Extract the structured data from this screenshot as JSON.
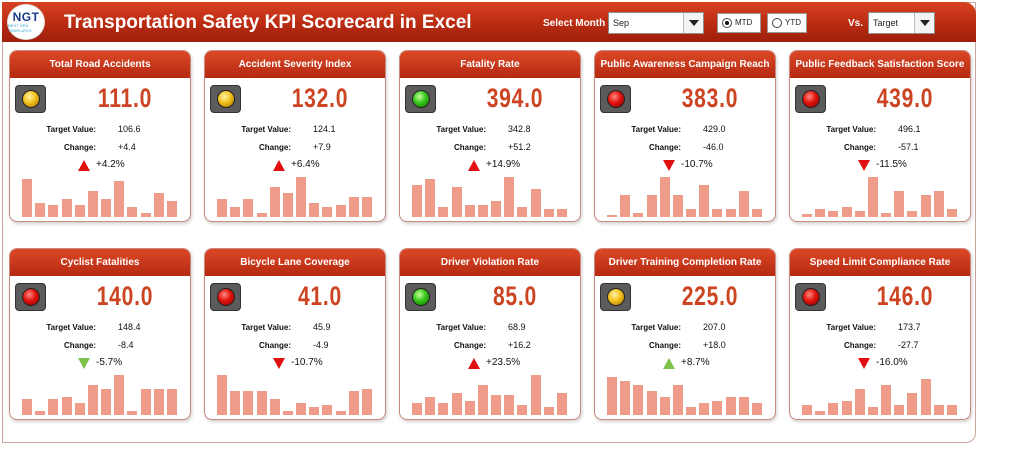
{
  "header": {
    "title": "Transportation Safety KPI Scorecard in Excel",
    "logo_text": "NGT",
    "logo_subtext": "NEXT GEN TEMPLATES",
    "select_month_label": "Select Month",
    "month_value": "Sep",
    "mtd_label": "MTD",
    "ytd_label": "YTD",
    "vs_label": "Vs.",
    "vs_value": "Target"
  },
  "labels": {
    "target": "Target Value:",
    "change": "Change:"
  },
  "cards": [
    {
      "title": "Total Road Accidents",
      "actual": "111.0",
      "target": "106.6",
      "change": "+4.4",
      "pct": "+4.2%",
      "light": "yellow",
      "arrow": "up-red",
      "spark": [
        0.95,
        0.35,
        0.3,
        0.45,
        0.3,
        0.65,
        0.45,
        0.9,
        0.25,
        0.1,
        0.6,
        0.4
      ]
    },
    {
      "title": "Accident Severity Index",
      "actual": "132.0",
      "target": "124.1",
      "change": "+7.9",
      "pct": "+6.4%",
      "light": "yellow",
      "arrow": "up-red",
      "spark": [
        0.45,
        0.25,
        0.45,
        0.1,
        0.75,
        0.6,
        1.0,
        0.35,
        0.25,
        0.3,
        0.5,
        0.5
      ]
    },
    {
      "title": "Fatality Rate",
      "actual": "394.0",
      "target": "342.8",
      "change": "+51.2",
      "pct": "+14.9%",
      "light": "green",
      "arrow": "up-red",
      "spark": [
        0.8,
        0.95,
        0.25,
        0.75,
        0.3,
        0.3,
        0.4,
        1.0,
        0.25,
        0.7,
        0.2,
        0.2
      ]
    },
    {
      "title": "Public Awareness Campaign Reach",
      "actual": "383.0",
      "target": "429.0",
      "change": "-46.0",
      "pct": "-10.7%",
      "light": "red",
      "arrow": "down-red",
      "spark": [
        0.05,
        0.55,
        0.1,
        0.55,
        1.0,
        0.55,
        0.2,
        0.8,
        0.2,
        0.2,
        0.65,
        0.2
      ]
    },
    {
      "title": "Public Feedback Satisfaction Score",
      "actual": "439.0",
      "target": "496.1",
      "change": "-57.1",
      "pct": "-11.5%",
      "light": "red",
      "arrow": "down-red",
      "spark": [
        0.08,
        0.2,
        0.15,
        0.25,
        0.15,
        1.0,
        0.1,
        0.65,
        0.15,
        0.55,
        0.65,
        0.2
      ]
    },
    {
      "title": "Cyclist Fatalities",
      "actual": "140.0",
      "target": "148.4",
      "change": "-8.4",
      "pct": "-5.7%",
      "light": "red",
      "arrow": "down-green",
      "spark": [
        0.4,
        0.1,
        0.4,
        0.45,
        0.3,
        0.75,
        0.65,
        1.0,
        0.1,
        0.65,
        0.65,
        0.65
      ]
    },
    {
      "title": "Bicycle Lane Coverage",
      "actual": "41.0",
      "target": "45.9",
      "change": "-4.9",
      "pct": "-10.7%",
      "light": "red",
      "arrow": "down-red",
      "spark": [
        1.0,
        0.6,
        0.6,
        0.6,
        0.4,
        0.1,
        0.3,
        0.2,
        0.25,
        0.1,
        0.6,
        0.65
      ]
    },
    {
      "title": "Driver Violation Rate",
      "actual": "85.0",
      "target": "68.9",
      "change": "+16.2",
      "pct": "+23.5%",
      "light": "green",
      "arrow": "up-red",
      "spark": [
        0.3,
        0.45,
        0.3,
        0.55,
        0.35,
        0.75,
        0.5,
        0.5,
        0.25,
        1.0,
        0.2,
        0.55
      ]
    },
    {
      "title": "Driver Training Completion Rate",
      "actual": "225.0",
      "target": "207.0",
      "change": "+18.0",
      "pct": "+8.7%",
      "light": "yellow",
      "arrow": "up-green",
      "spark": [
        0.95,
        0.85,
        0.75,
        0.6,
        0.45,
        0.75,
        0.2,
        0.3,
        0.35,
        0.45,
        0.45,
        0.3
      ]
    },
    {
      "title": "Speed Limit Compliance Rate",
      "actual": "146.0",
      "target": "173.7",
      "change": "-27.7",
      "pct": "-16.0%",
      "light": "red",
      "arrow": "down-red",
      "spark": [
        0.25,
        0.1,
        0.3,
        0.35,
        0.65,
        0.2,
        0.75,
        0.25,
        0.55,
        0.9,
        0.25,
        0.25
      ]
    }
  ],
  "colors": {
    "header": "#c0321a",
    "actual": "#cc4422",
    "spark": "#ee9b8a"
  }
}
